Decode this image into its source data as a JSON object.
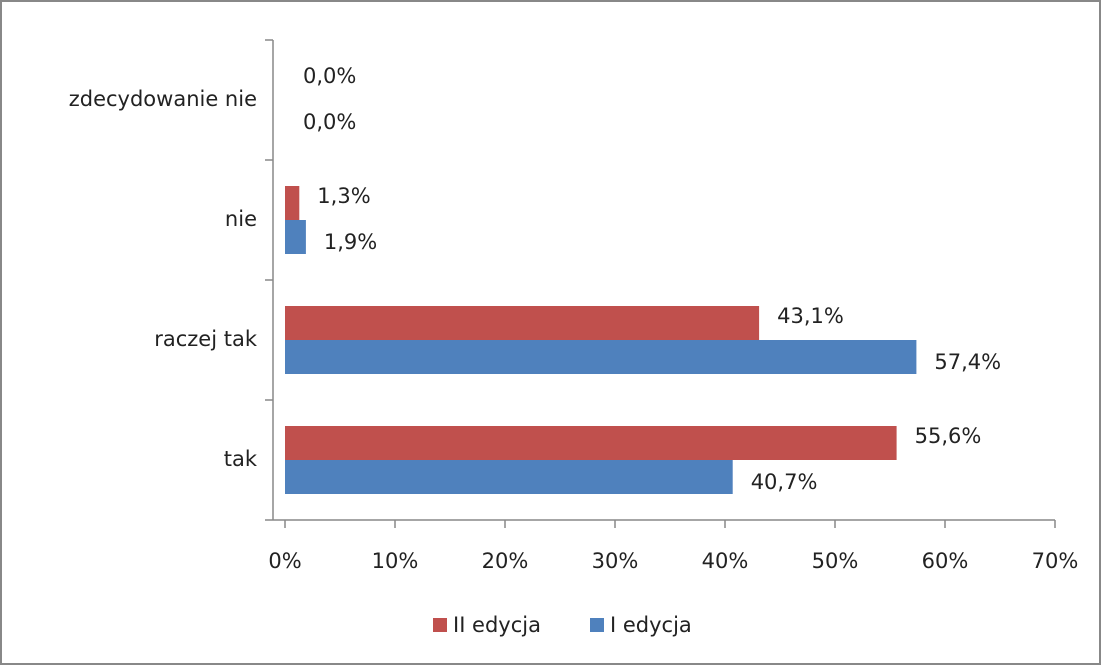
{
  "chart_data": {
    "type": "bar",
    "orientation": "horizontal",
    "categories": [
      "zdecydowanie nie",
      "nie",
      "raczej tak",
      "tak"
    ],
    "series": [
      {
        "name": "II edycja",
        "color": "#c0504d",
        "values": [
          0.0,
          1.3,
          43.1,
          55.6
        ],
        "value_labels": [
          "0,0%",
          "1,3%",
          "43,1%",
          "55,6%"
        ]
      },
      {
        "name": "I edycja",
        "color": "#4f81bd",
        "values": [
          0.0,
          1.9,
          57.4,
          40.7
        ],
        "value_labels": [
          "0,0%",
          "1,9%",
          "57,4%",
          "40,7%"
        ]
      }
    ],
    "xlim": [
      0,
      70
    ],
    "xticks": [
      {
        "value": 0,
        "label": "0%"
      },
      {
        "value": 10,
        "label": "10%"
      },
      {
        "value": 20,
        "label": "20%"
      },
      {
        "value": 30,
        "label": "30%"
      },
      {
        "value": 40,
        "label": "40%"
      },
      {
        "value": 50,
        "label": "50%"
      },
      {
        "value": 60,
        "label": "60%"
      },
      {
        "value": 70,
        "label": "70%"
      }
    ],
    "legend": "bottom"
  }
}
